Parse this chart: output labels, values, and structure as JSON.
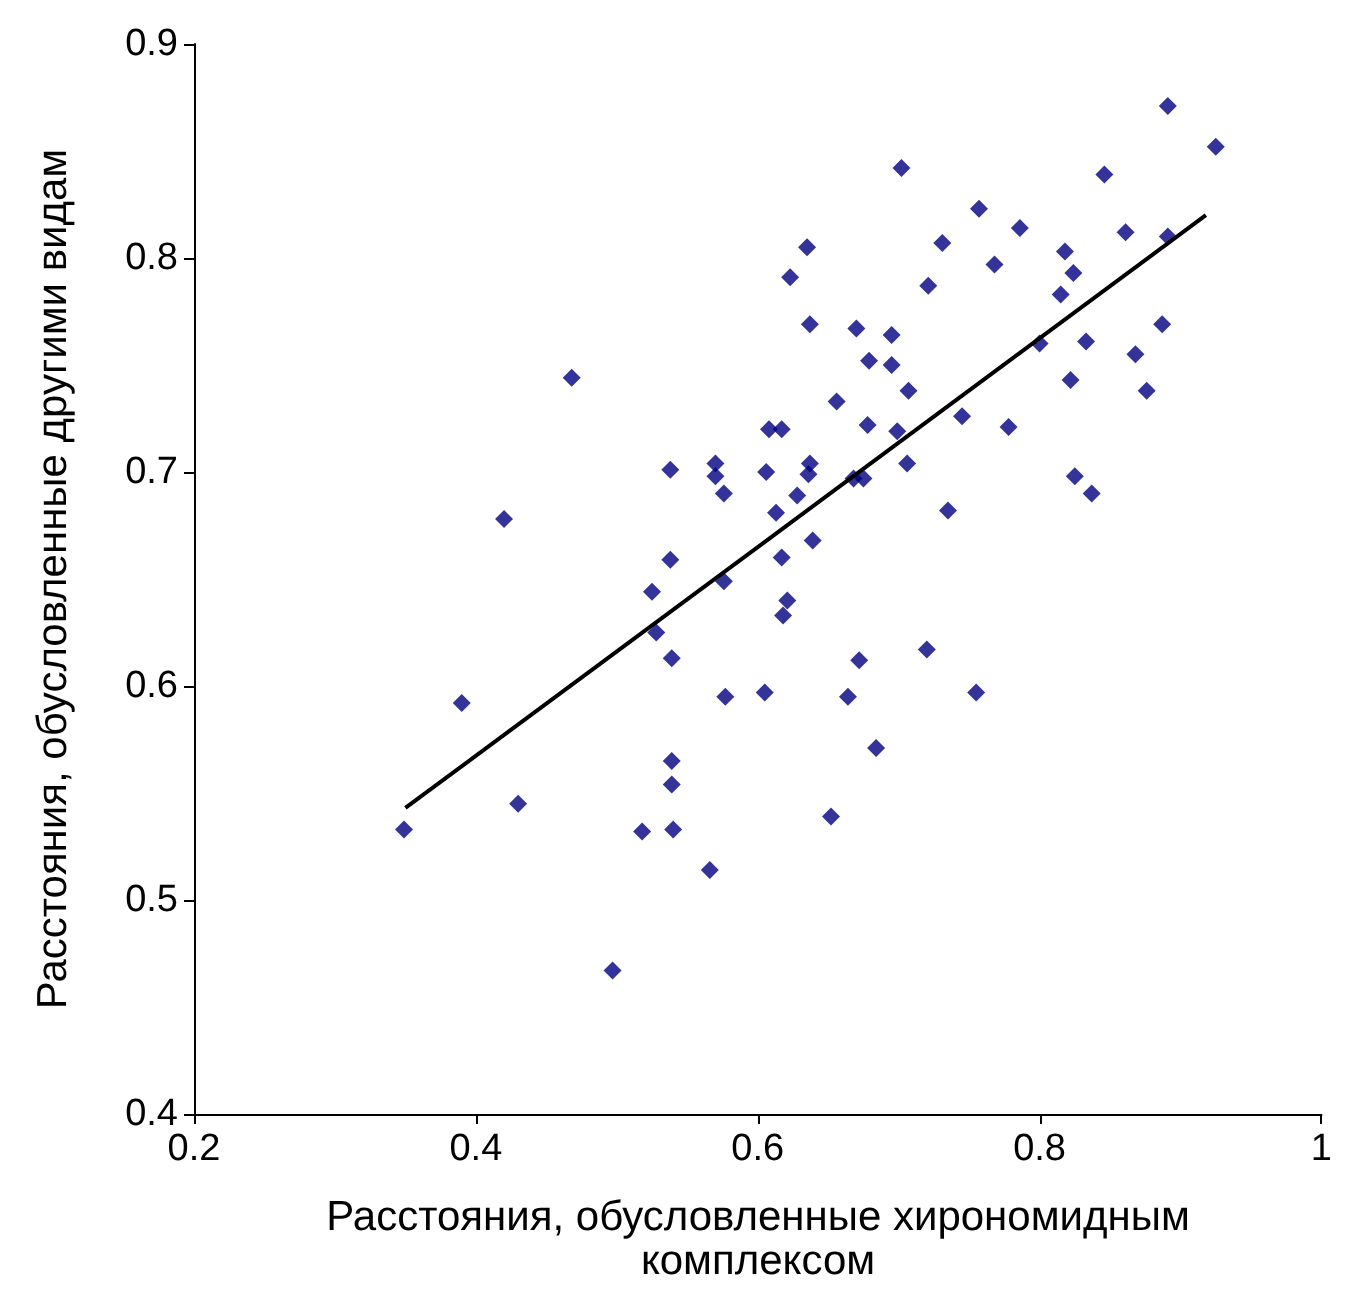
{
  "chart_data": {
    "type": "scatter",
    "xlabel": "Расстояния, обусловленные хирономидным комплексом",
    "ylabel": "Расстояния, обусловленные другими видам",
    "xlim": [
      0.2,
      1
    ],
    "xticks": [
      0.2,
      0.4,
      0.6,
      0.8,
      1
    ],
    "ylim": [
      0.4,
      0.9
    ],
    "yticks": [
      0.4,
      0.5,
      0.6,
      0.7,
      0.8,
      0.9
    ],
    "grid": false,
    "marker": "diamond",
    "series": [
      {
        "color": "#000080",
        "x": [
          0.349,
          0.39,
          0.42,
          0.43,
          0.468,
          0.497,
          0.518,
          0.525,
          0.528,
          0.538,
          0.538,
          0.539,
          0.539,
          0.539,
          0.54,
          0.566,
          0.57,
          0.57,
          0.576,
          0.576,
          0.577,
          0.605,
          0.606,
          0.608,
          0.613,
          0.617,
          0.617,
          0.621,
          0.618,
          0.623,
          0.628,
          0.635,
          0.637,
          0.637,
          0.636,
          0.639,
          0.652,
          0.656,
          0.664,
          0.668,
          0.672,
          0.67,
          0.675,
          0.679,
          0.678,
          0.684,
          0.695,
          0.695,
          0.699,
          0.702,
          0.706,
          0.707,
          0.72,
          0.721,
          0.731,
          0.735,
          0.745,
          0.755,
          0.757,
          0.768,
          0.778,
          0.786,
          0.8,
          0.815,
          0.818,
          0.824,
          0.822,
          0.825,
          0.833,
          0.837,
          0.846,
          0.861,
          0.868,
          0.876,
          0.887,
          0.891,
          0.891,
          0.925
        ],
        "values": [
          0.533,
          0.592,
          0.678,
          0.545,
          0.744,
          0.467,
          0.532,
          0.644,
          0.625,
          0.701,
          0.659,
          0.613,
          0.565,
          0.554,
          0.533,
          0.514,
          0.704,
          0.698,
          0.69,
          0.649,
          0.595,
          0.597,
          0.7,
          0.72,
          0.681,
          0.72,
          0.66,
          0.64,
          0.633,
          0.791,
          0.689,
          0.805,
          0.769,
          0.704,
          0.699,
          0.668,
          0.539,
          0.733,
          0.595,
          0.697,
          0.612,
          0.767,
          0.697,
          0.752,
          0.722,
          0.571,
          0.764,
          0.75,
          0.719,
          0.842,
          0.704,
          0.738,
          0.617,
          0.787,
          0.807,
          0.682,
          0.726,
          0.597,
          0.823,
          0.797,
          0.721,
          0.814,
          0.76,
          0.783,
          0.803,
          0.793,
          0.743,
          0.698,
          0.761,
          0.69,
          0.839,
          0.812,
          0.755,
          0.738,
          0.769,
          0.871,
          0.81,
          0.852
        ]
      },
      {
        "type": "line",
        "marker": "none",
        "color": "#000000",
        "x": [
          0.35,
          0.918
        ],
        "values": [
          0.543,
          0.82
        ]
      }
    ]
  }
}
